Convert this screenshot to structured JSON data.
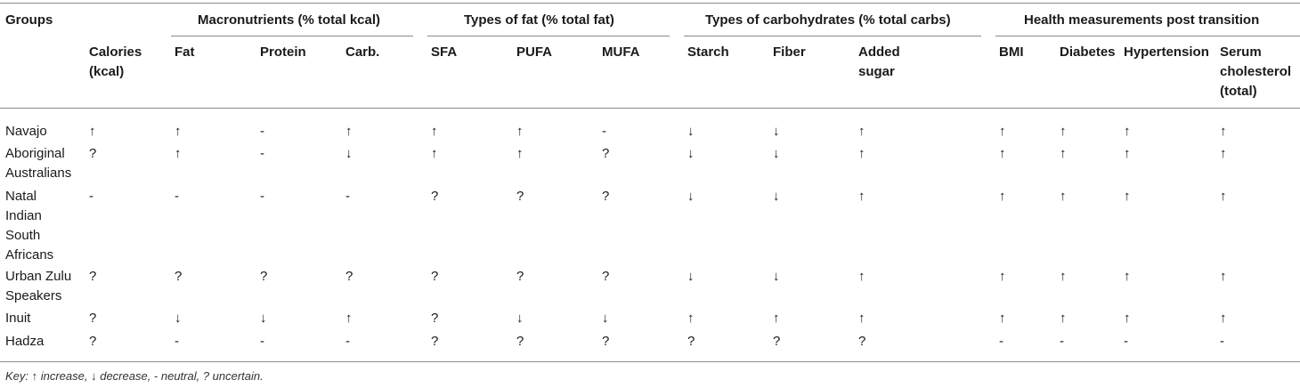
{
  "table": {
    "group_header_first": "Groups",
    "group_headers": [
      "Macronutrients (% total kcal)",
      "Types of fat (% total fat)",
      "Types of carbohydrates (% total carbs)",
      "Health measurements post transition"
    ],
    "columns": [
      [
        "Calories",
        "(kcal)"
      ],
      [
        "Fat"
      ],
      [
        "Protein"
      ],
      [
        "Carb."
      ],
      [
        "SFA"
      ],
      [
        "PUFA"
      ],
      [
        "MUFA"
      ],
      [
        "Starch"
      ],
      [
        "Fiber"
      ],
      [
        "Added",
        "sugar"
      ],
      [
        "BMI"
      ],
      [
        "Diabetes"
      ],
      [
        "Hypertension"
      ],
      [
        "Serum",
        "cholesterol",
        "(total)"
      ]
    ],
    "rows": [
      {
        "label": [
          "Navajo"
        ],
        "values": [
          "↑",
          "↑",
          "-",
          "↑",
          "↑",
          "↑",
          "-",
          "↓",
          "↓",
          "↑",
          "↑",
          "↑",
          "↑",
          "↑"
        ]
      },
      {
        "label": [
          "Aboriginal",
          "Australians"
        ],
        "values": [
          "?",
          "↑",
          "-",
          "↓",
          "↑",
          "↑",
          "?",
          "↓",
          "↓",
          "↑",
          "↑",
          "↑",
          "↑",
          "↑"
        ]
      },
      {
        "label": [
          "Natal",
          "Indian",
          "South",
          "Africans"
        ],
        "values": [
          "-",
          "-",
          "-",
          "-",
          "?",
          "?",
          "?",
          "↓",
          "↓",
          "↑",
          "↑",
          "↑",
          "↑",
          "↑"
        ]
      },
      {
        "label": [
          "Urban Zulu",
          "Speakers"
        ],
        "values": [
          "?",
          "?",
          "?",
          "?",
          "?",
          "?",
          "?",
          "↓",
          "↓",
          "↑",
          "↑",
          "↑",
          "↑",
          "↑"
        ]
      },
      {
        "label": [
          "Inuit"
        ],
        "values": [
          "?",
          "↓",
          "↓",
          "↑",
          "?",
          "↓",
          "↓",
          "↑",
          "↑",
          "↑",
          "↑",
          "↑",
          "↑",
          "↑"
        ]
      },
      {
        "label": [
          "Hadza"
        ],
        "values": [
          "?",
          "-",
          "-",
          "-",
          "?",
          "?",
          "?",
          "?",
          "?",
          "?",
          "-",
          "-",
          "-",
          "-"
        ]
      }
    ]
  },
  "footnote": "Key: ↑ increase, ↓ decrease, - neutral, ? uncertain."
}
